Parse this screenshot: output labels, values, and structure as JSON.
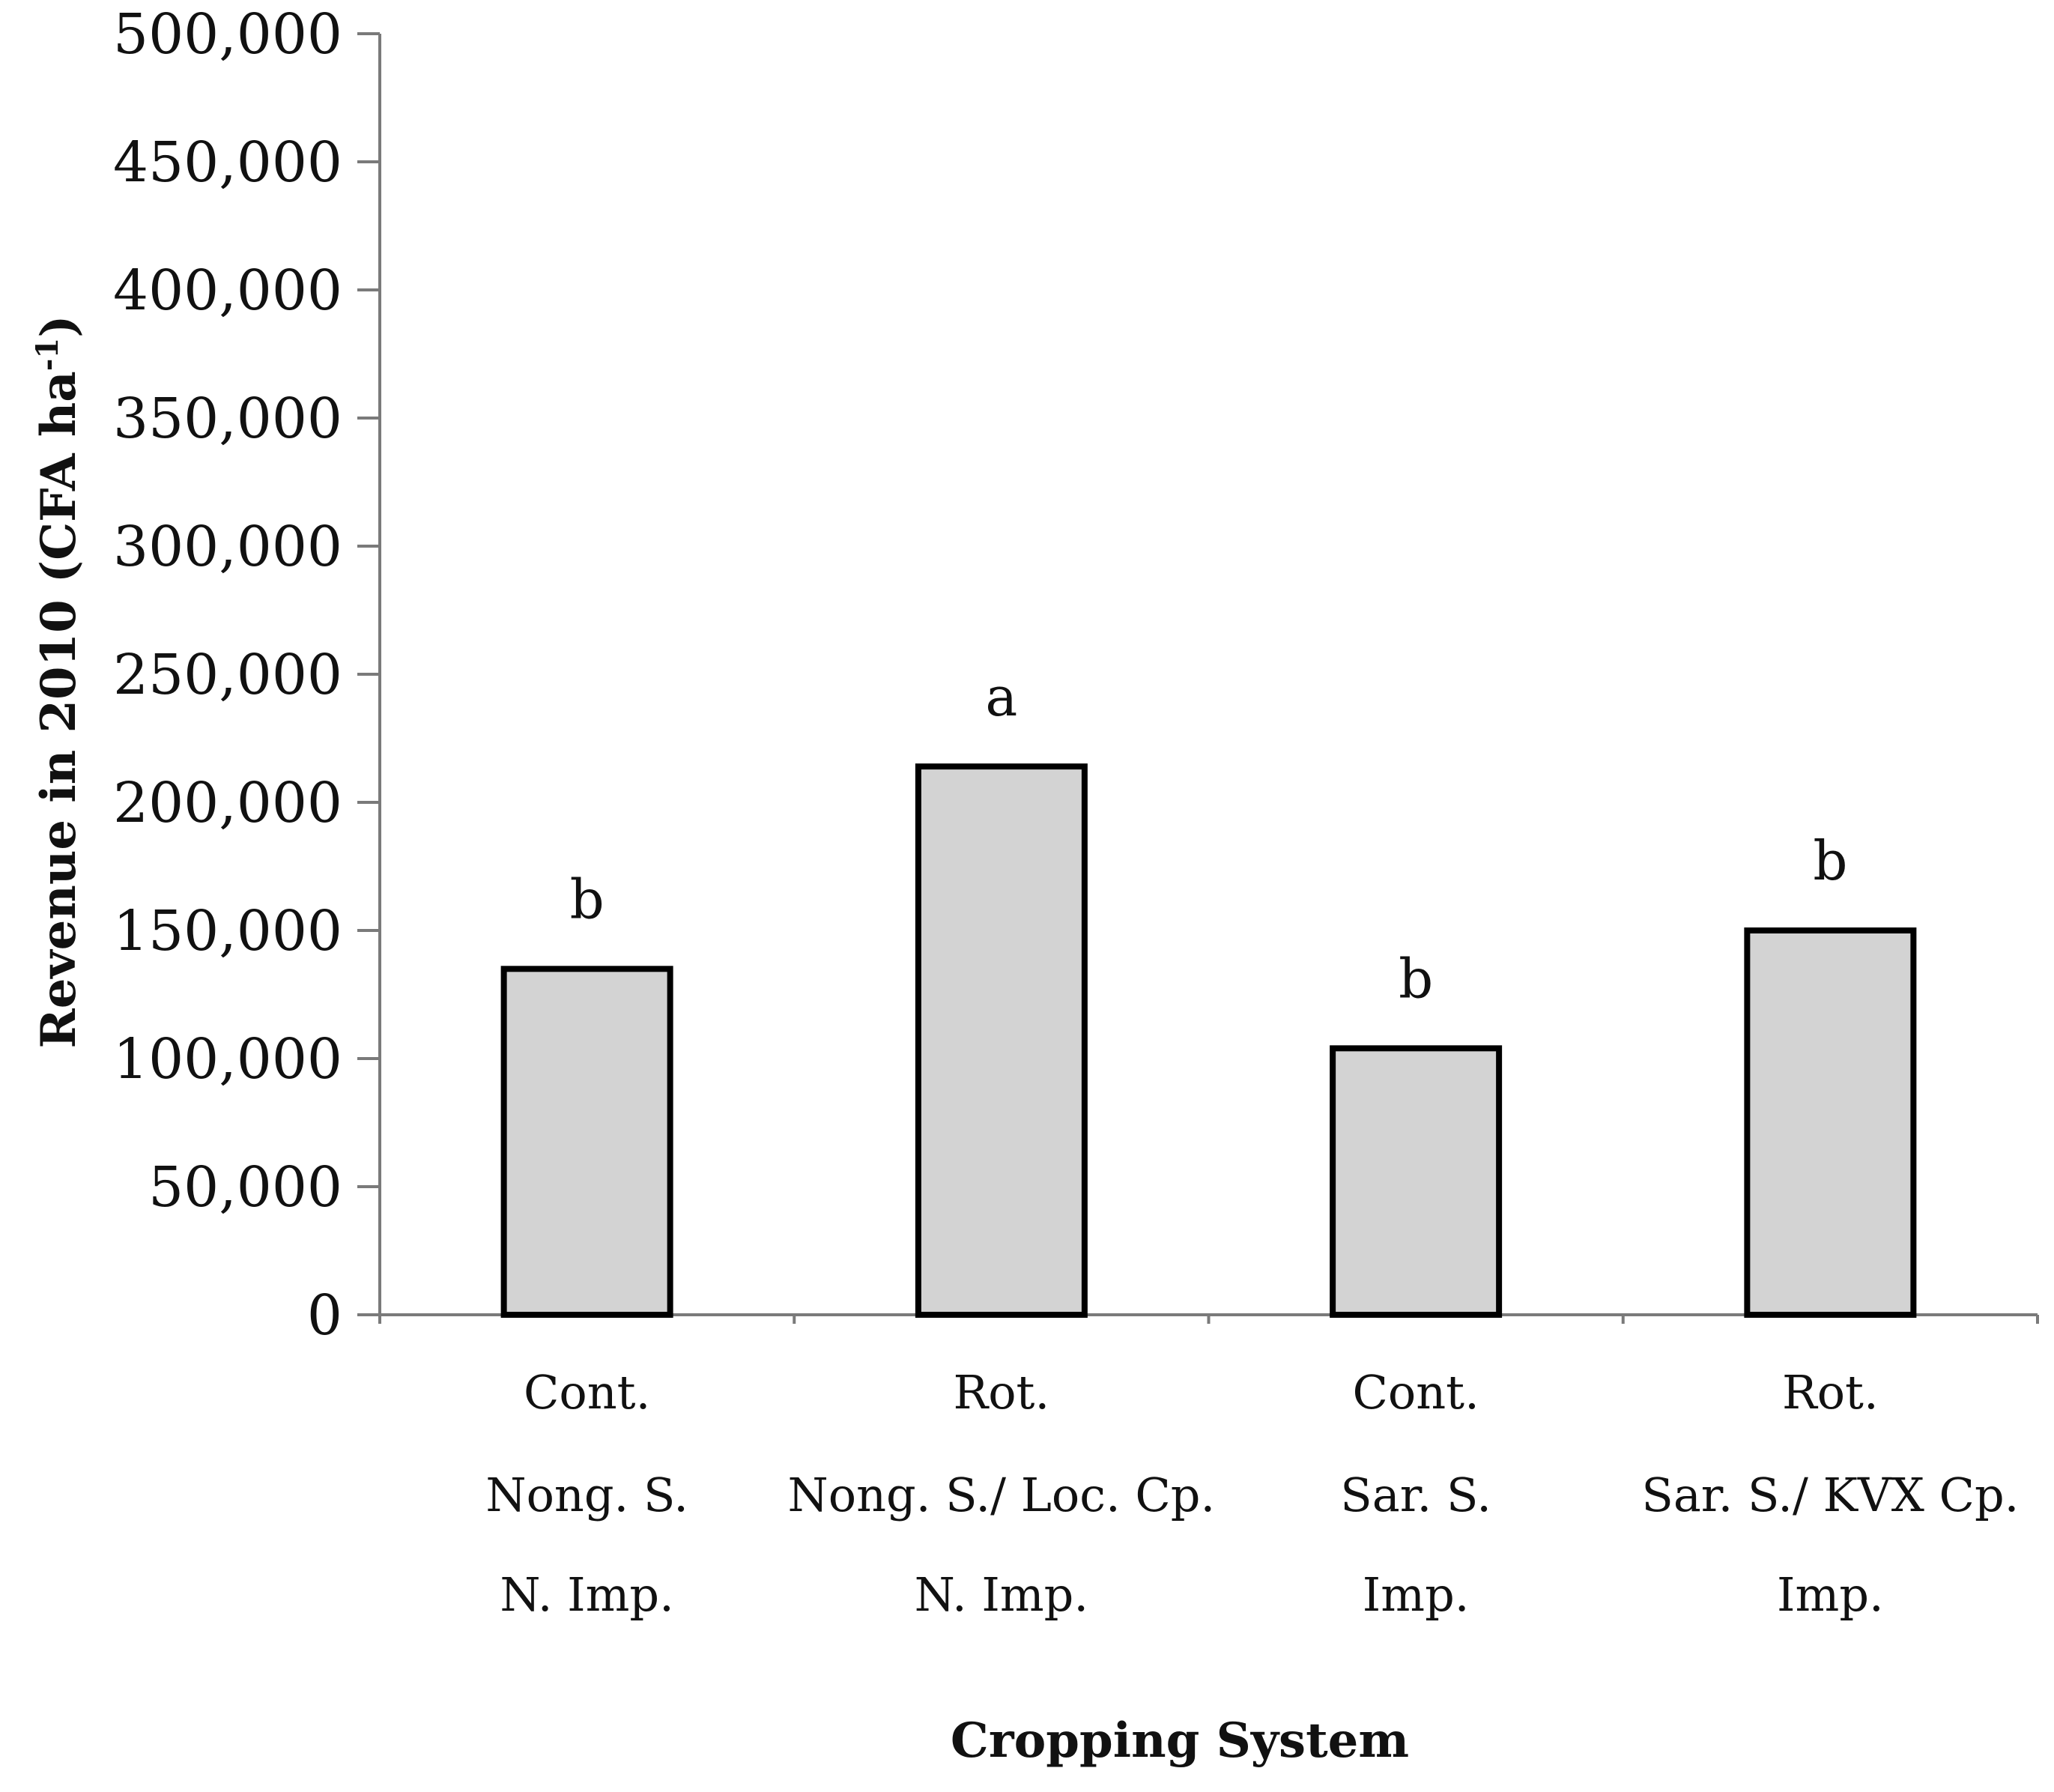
{
  "chart_data": {
    "type": "bar",
    "title": "",
    "xlabel": "Cropping System",
    "ylabel": {
      "main": "Revenue in 2010 (CFA ha",
      "superscript": "-1",
      "close": ")"
    },
    "ylim": [
      0,
      500000
    ],
    "yticks": [
      "0",
      "50,000",
      "100,000",
      "150,000",
      "200,000",
      "250,000",
      "300,000",
      "350,000",
      "400,000",
      "450,000",
      "500,000"
    ],
    "categories": [
      {
        "lines": [
          "Cont.",
          "Nong. S.",
          "N. Imp."
        ]
      },
      {
        "lines": [
          "Rot.",
          "Nong. S./ Loc. Cp.",
          "N. Imp."
        ]
      },
      {
        "lines": [
          "Cont.",
          "Sar. S.",
          "Imp."
        ]
      },
      {
        "lines": [
          "Rot.",
          "Sar. S./ KVX Cp.",
          "Imp."
        ]
      }
    ],
    "values": [
      135000,
      214000,
      104000,
      150000
    ],
    "significance": [
      "b",
      "a",
      "b",
      "b"
    ],
    "bar_fill": "#d3d3d3",
    "bar_edge": "#000000",
    "grid": false
  }
}
